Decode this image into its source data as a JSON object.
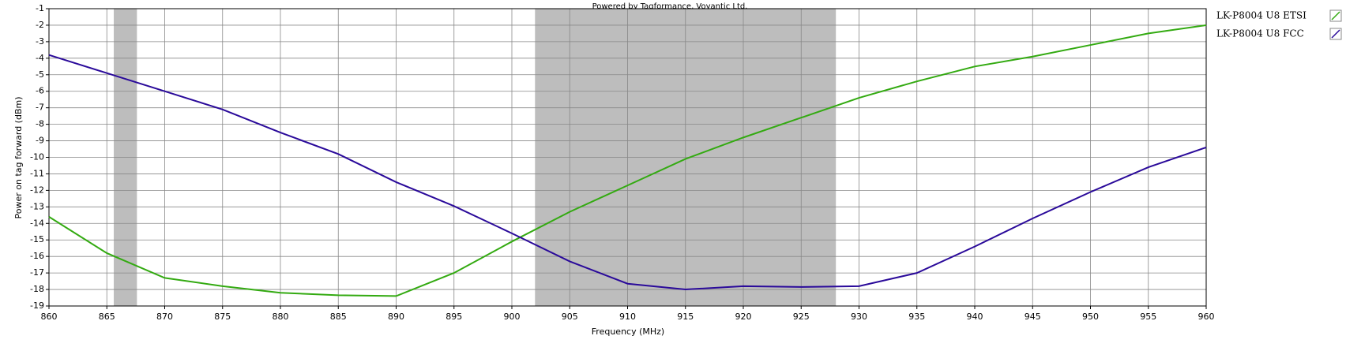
{
  "chart_data": {
    "type": "line",
    "annotation": "Powered by Tagformance, Voyantic Ltd.",
    "xlabel": "Frequency (MHz)",
    "ylabel": "Power on tag forward (dBm)",
    "x": [
      860,
      865,
      870,
      875,
      880,
      885,
      890,
      895,
      900,
      905,
      910,
      915,
      920,
      925,
      930,
      935,
      940,
      945,
      950,
      955,
      960
    ],
    "series": [
      {
        "name": "LK-P8004 U8 ETSI",
        "color": "#33aa11",
        "values": [
          -13.6,
          -15.8,
          -17.3,
          -17.8,
          -18.2,
          -18.35,
          -18.4,
          -17,
          -15.1,
          -13.3,
          -11.7,
          -10.1,
          -8.8,
          -7.6,
          -6.4,
          -5.4,
          -4.5,
          -3.9,
          -3.2,
          -2.5,
          -2.0
        ]
      },
      {
        "name": "LK-P8004 U8 FCC",
        "color": "#2a0a9a",
        "values": [
          -3.8,
          -4.9,
          -6.0,
          -7.1,
          -8.5,
          -9.8,
          -11.5,
          -12.95,
          -14.6,
          -16.3,
          -17.65,
          -18.0,
          -17.8,
          -17.85,
          -17.8,
          -17.0,
          -15.4,
          -13.7,
          -12.1,
          -10.6,
          -9.4
        ]
      }
    ],
    "bands": [
      [
        865.6,
        867.6
      ],
      [
        902,
        928
      ]
    ],
    "band_color": "#bdbdbd",
    "xlim": [
      860,
      960
    ],
    "ylim": [
      -19,
      -1
    ],
    "xticks": [
      860,
      865,
      870,
      875,
      880,
      885,
      890,
      895,
      900,
      905,
      910,
      915,
      920,
      925,
      930,
      935,
      940,
      945,
      950,
      955,
      960
    ],
    "yticks": [
      -19,
      -18,
      -17,
      -16,
      -15,
      -14,
      -13,
      -12,
      -11,
      -10,
      -9,
      -8,
      -7,
      -6,
      -5,
      -4,
      -3,
      -2,
      -1
    ],
    "grid": true,
    "legend": "right"
  }
}
